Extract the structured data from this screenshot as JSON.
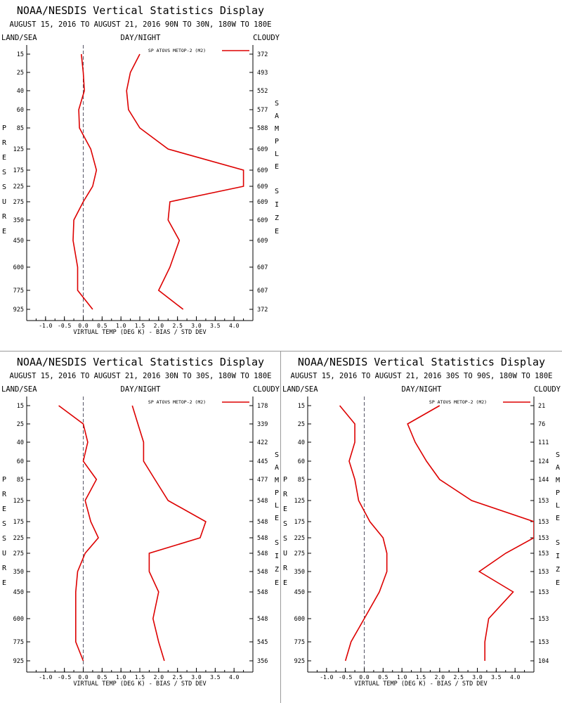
{
  "colors": {
    "series": "#dd0000",
    "axis": "#000000",
    "zero_line": "#555566",
    "divider": "#9a9a9a"
  },
  "common": {
    "title": "NOAA/NESDIS Vertical Statistics Display",
    "left_label": "LAND/SEA",
    "center_label": "DAY/NIGHT",
    "right_label": "CLOUDY",
    "y_axis_label": "PRESSURE",
    "sample_axis_label": "SAMPLE SIZE",
    "x_axis_label": "VIRTUAL TEMP (DEG K) - BIAS / STD DEV",
    "legend": "SP ATOVS METOP-2 (M2)"
  },
  "chart_data": [
    {
      "type": "line",
      "subtitle": "AUGUST 15, 2016 TO AUGUST 21, 2016  90N TO 30N, 180W TO 180E",
      "xlim": [
        -1.5,
        4.5
      ],
      "x_ticks": [
        "-1.0",
        "-0.5",
        "0.0",
        "0.5",
        "1.0",
        "1.5",
        "2.0",
        "2.5",
        "3.0",
        "3.5",
        "4.0"
      ],
      "pressure_levels": [
        15,
        25,
        40,
        60,
        85,
        125,
        175,
        225,
        275,
        350,
        450,
        600,
        775,
        925
      ],
      "sample_size": [
        372,
        493,
        552,
        577,
        588,
        609,
        609,
        609,
        609,
        609,
        609,
        607,
        607,
        372
      ],
      "series": [
        {
          "values": [
            -0.05,
            0.0,
            0.03,
            -0.12,
            -0.1,
            0.2,
            0.35,
            0.25,
            0.0,
            -0.25,
            -0.27,
            -0.15,
            -0.15,
            0.25
          ]
        },
        {
          "values": [
            1.5,
            1.25,
            1.15,
            1.2,
            1.5,
            2.25,
            4.25,
            4.25,
            2.3,
            2.25,
            2.55,
            2.3,
            2.0,
            2.65
          ]
        }
      ]
    },
    {
      "type": "line",
      "subtitle": "AUGUST 15, 2016 TO AUGUST 21, 2016  30N TO 30S, 180W TO 180E",
      "xlim": [
        -1.5,
        4.5
      ],
      "x_ticks": [
        "-1.0",
        "-0.5",
        "0.0",
        "0.5",
        "1.0",
        "1.5",
        "2.0",
        "2.5",
        "3.0",
        "3.5",
        "4.0"
      ],
      "pressure_levels": [
        15,
        25,
        40,
        60,
        85,
        125,
        175,
        225,
        275,
        350,
        450,
        600,
        775,
        925
      ],
      "sample_size": [
        178,
        339,
        422,
        445,
        477,
        548,
        548,
        548,
        548,
        548,
        548,
        548,
        545,
        356
      ],
      "series": [
        {
          "values": [
            -0.65,
            0.0,
            0.12,
            0.0,
            0.35,
            0.05,
            0.2,
            0.4,
            0.05,
            -0.15,
            -0.2,
            -0.2,
            -0.2,
            0.0
          ]
        },
        {
          "values": [
            1.3,
            1.45,
            1.6,
            1.6,
            1.9,
            2.25,
            3.25,
            3.1,
            1.75,
            1.75,
            2.0,
            1.85,
            2.0,
            2.15
          ]
        }
      ]
    },
    {
      "type": "line",
      "subtitle": "AUGUST 15, 2016 TO AUGUST 21, 2016  30S TO 90S, 180W TO 180E",
      "xlim": [
        -1.5,
        4.5
      ],
      "x_ticks": [
        "-1.0",
        "-0.5",
        "0.0",
        "0.5",
        "1.0",
        "1.5",
        "2.0",
        "2.5",
        "3.0",
        "3.5",
        "4.0"
      ],
      "pressure_levels": [
        15,
        25,
        40,
        60,
        85,
        125,
        175,
        225,
        275,
        350,
        450,
        600,
        775,
        925
      ],
      "sample_size": [
        21,
        76,
        111,
        124,
        144,
        153,
        153,
        153,
        153,
        153,
        153,
        153,
        153,
        104
      ],
      "series": [
        {
          "values": [
            -0.65,
            -0.25,
            -0.25,
            -0.4,
            -0.25,
            -0.15,
            0.15,
            0.5,
            0.6,
            0.6,
            0.4,
            0.0,
            -0.35,
            -0.5
          ]
        },
        {
          "values": [
            2.0,
            1.15,
            1.35,
            1.65,
            2.0,
            2.85,
            4.5,
            4.5,
            3.75,
            3.05,
            3.95,
            3.3,
            3.2,
            3.2
          ]
        }
      ]
    }
  ]
}
